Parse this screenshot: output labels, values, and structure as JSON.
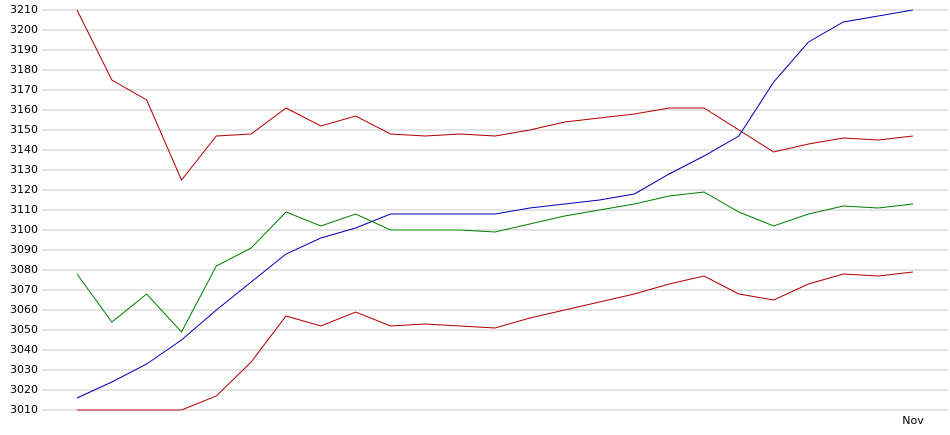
{
  "chart_data": {
    "type": "line",
    "categories": [
      null,
      null,
      null,
      null,
      null,
      null,
      null,
      null,
      null,
      null,
      null,
      null,
      null,
      null,
      null,
      null,
      null,
      null,
      null,
      null,
      null,
      null,
      null,
      null,
      "Nov"
    ],
    "series": [
      {
        "color": "#b00000",
        "values": [
          3210,
          3175,
          3165,
          3125,
          3147,
          3148,
          3161,
          3152,
          3157,
          3148,
          3147,
          3148,
          3147,
          3150,
          3154,
          3156,
          3158,
          3161,
          3161,
          3150,
          3139,
          3143,
          3146,
          3145,
          3147
        ]
      },
      {
        "color": "#b00000",
        "values": [
          3010,
          3010,
          3010,
          3010,
          3017,
          3034,
          3057,
          3052,
          3059,
          3052,
          3053,
          3052,
          3051,
          3056,
          3060,
          3064,
          3068,
          3073,
          3077,
          3068,
          3065,
          3073,
          3078,
          3077,
          3079
        ]
      },
      {
        "color": "#0000b0",
        "values": [
          3016,
          3024,
          3033,
          3045,
          3060,
          3074,
          3088,
          3096,
          3101,
          3108,
          3108,
          3108,
          3108,
          3111,
          3113,
          3115,
          3118,
          3128,
          3137,
          3147,
          3174,
          3194,
          3204,
          3207,
          3210
        ]
      },
      {
        "color": "#008000",
        "values": [
          3078,
          3054,
          3068,
          3049,
          3082,
          3091,
          3109,
          3102,
          3108,
          3100,
          3100,
          3100,
          3099,
          3103,
          3107,
          3110,
          3113,
          3117,
          3119,
          3109,
          3102,
          3108,
          3112,
          3111,
          3113
        ]
      }
    ],
    "ylim": [
      3010,
      3210
    ],
    "yticks": [
      3010,
      3020,
      3030,
      3040,
      3050,
      3060,
      3070,
      3080,
      3090,
      3100,
      3110,
      3120,
      3130,
      3140,
      3150,
      3160,
      3170,
      3180,
      3190,
      3200,
      3210
    ],
    "grid": true
  }
}
